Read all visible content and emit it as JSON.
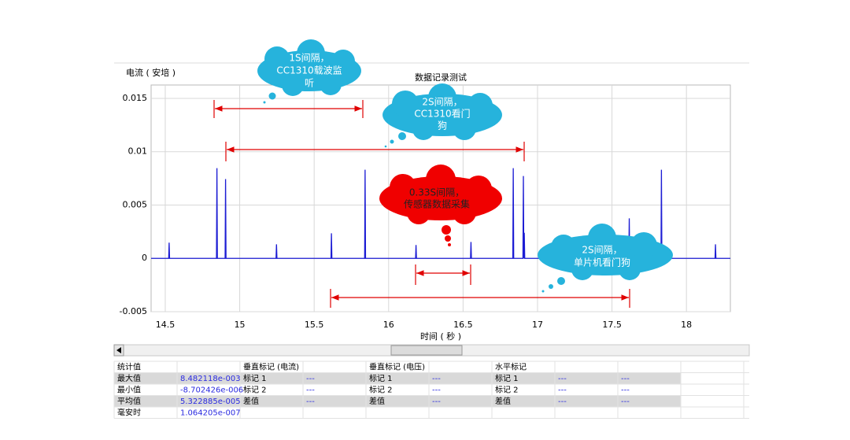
{
  "chart_data": {
    "type": "line",
    "title": "数据记录测试",
    "y_label": "电流 ( 安培 )",
    "x_label": "时间 ( 秒 )",
    "xlim": [
      14.405,
      18.295
    ],
    "xticks": [
      14.5,
      15,
      15.5,
      16,
      16.5,
      17,
      17.5,
      18
    ],
    "ylim": [
      -0.005,
      0.01625
    ],
    "yticks": [
      0.015,
      0.01,
      0.005,
      0,
      -0.005
    ],
    "grid": true,
    "series": [
      {
        "color": "#1c1cd4",
        "x": [
          14.405,
          14.523,
          14.526,
          14.529,
          14.844,
          14.847,
          14.85,
          14.902,
          14.905,
          14.908,
          15.244,
          15.247,
          15.25,
          15.613,
          15.616,
          15.619,
          15.839,
          15.842,
          15.845,
          16.181,
          16.184,
          16.187,
          16.55,
          16.553,
          16.556,
          16.834,
          16.837,
          16.84,
          16.902,
          16.905,
          16.908,
          16.911,
          16.914,
          17.613,
          17.616,
          17.619,
          17.829,
          17.832,
          17.835,
          18.192,
          18.195,
          18.198,
          18.295
        ],
        "values": [
          0,
          0,
          0.00147,
          0,
          0,
          0.00846,
          0,
          0,
          0.00743,
          0,
          0,
          0.00132,
          0,
          0,
          0.00235,
          0,
          0,
          0.00831,
          0,
          0,
          0.00125,
          0,
          0,
          0.00154,
          0,
          0,
          0.00846,
          0,
          0,
          0.00772,
          0,
          0.0024,
          0,
          0,
          0.00375,
          0,
          0,
          0.00831,
          0,
          0,
          0.00132,
          0,
          0
        ]
      }
    ],
    "annotations": [
      {
        "lines": [
          "1S间隔，",
          "CC1310载波监",
          "听"
        ]
      },
      {
        "lines": [
          "2S间隔，",
          "CC1310看门",
          "狗"
        ]
      },
      {
        "lines": [
          "0.33S间隔，",
          "传感器数据采集"
        ]
      },
      {
        "lines": [
          "2S间隔，",
          "单片机看门狗"
        ]
      }
    ]
  },
  "table": {
    "header": [
      "统计值",
      null,
      "垂直标记 (电流)",
      null,
      "垂直标记 (电压)",
      null,
      "水平标记",
      null,
      null
    ],
    "rows": [
      [
        "最大值",
        "8.482118e-003",
        "标记 1",
        "---",
        "标记 1",
        "---",
        "标记 1",
        "---",
        "---"
      ],
      [
        "最小值",
        "-8.702426e-006",
        "标记 2",
        "---",
        "标记 2",
        "---",
        "标记 2",
        "---",
        "---"
      ],
      [
        "平均值",
        "5.322885e-005",
        "差值",
        "---",
        "差值",
        "---",
        "差值",
        "---",
        "---"
      ],
      [
        "毫安时",
        "1.064205e-007",
        null,
        null,
        null,
        null,
        null,
        null,
        null
      ]
    ]
  }
}
